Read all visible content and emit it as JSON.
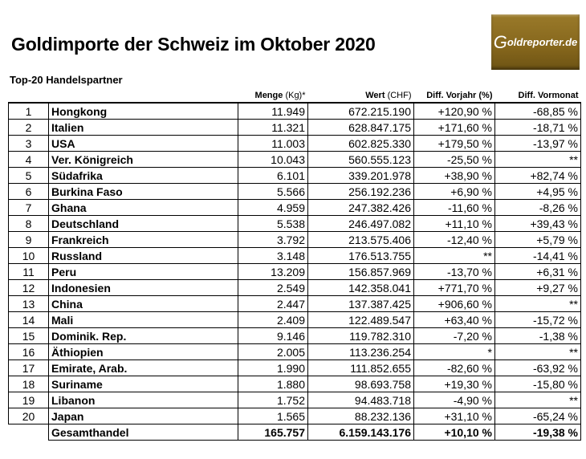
{
  "title": "Goldimporte der Schweiz im Oktober 2020",
  "subtitle": "Top-20 Handelspartner",
  "logo_text": "Goldreporter.de",
  "headers": {
    "menge": "Menge",
    "menge_unit": "(Kg)*",
    "wert": "Wert",
    "wert_unit": "(CHF)",
    "vorjahr": "Diff. Vorjahr (%)",
    "vormonat": "Diff. Vormonat"
  },
  "rows": [
    [
      "1",
      "Hongkong",
      "11.949",
      "672.215.190",
      "+120,90 %",
      "-68,85 %"
    ],
    [
      "2",
      "Italien",
      "11.321",
      "628.847.175",
      "+171,60 %",
      "-18,71 %"
    ],
    [
      "3",
      "USA",
      "11.003",
      "602.825.330",
      "+179,50 %",
      "-13,97 %"
    ],
    [
      "4",
      "Ver. Königreich",
      "10.043",
      "560.555.123",
      "-25,50 %",
      "**"
    ],
    [
      "5",
      "Südafrika",
      "6.101",
      "339.201.978",
      "+38,90 %",
      "+82,74 %"
    ],
    [
      "6",
      "Burkina Faso",
      "5.566",
      "256.192.236",
      "+6,90 %",
      "+4,95 %"
    ],
    [
      "7",
      "Ghana",
      "4.959",
      "247.382.426",
      "-11,60 %",
      "-8,26 %"
    ],
    [
      "8",
      "Deutschland",
      "5.538",
      "246.497.082",
      "+11,10 %",
      "+39,43 %"
    ],
    [
      "9",
      "Frankreich",
      "3.792",
      "213.575.406",
      "-12,40 %",
      "+5,79 %"
    ],
    [
      "10",
      "Russland",
      "3.148",
      "176.513.755",
      "**",
      "-14,41 %"
    ],
    [
      "11",
      "Peru",
      "13.209",
      "156.857.969",
      "-13,70 %",
      "+6,31 %"
    ],
    [
      "12",
      "Indonesien",
      "2.549",
      "142.358.041",
      "+771,70 %",
      "+9,27 %"
    ],
    [
      "13",
      "China",
      "2.447",
      "137.387.425",
      "+906,60 %",
      "**"
    ],
    [
      "14",
      "Mali",
      "2.409",
      "122.489.547",
      "+63,40 %",
      "-15,72 %"
    ],
    [
      "15",
      "Dominik. Rep.",
      "9.146",
      "119.782.310",
      "-7,20 %",
      "-1,38 %"
    ],
    [
      "16",
      "Äthiopien",
      "2.005",
      "113.236.254",
      "*",
      "**"
    ],
    [
      "17",
      "Emirate, Arab.",
      "1.990",
      "111.852.655",
      "-82,60 %",
      "-63,92 %"
    ],
    [
      "18",
      "Suriname",
      "1.880",
      "98.693.758",
      "+19,30 %",
      "-15,80 %"
    ],
    [
      "19",
      "Libanon",
      "1.752",
      "94.483.718",
      "-4,90 %",
      "**"
    ],
    [
      "20",
      "Japan",
      "1.565",
      "88.232.136",
      "+31,10 %",
      "-65,24 %"
    ]
  ],
  "total": {
    "label": "Gesamthandel",
    "menge": "165.757",
    "wert": "6.159.143.176",
    "vorjahr": "+10,10 %",
    "vormonat": "-19,38 %"
  }
}
